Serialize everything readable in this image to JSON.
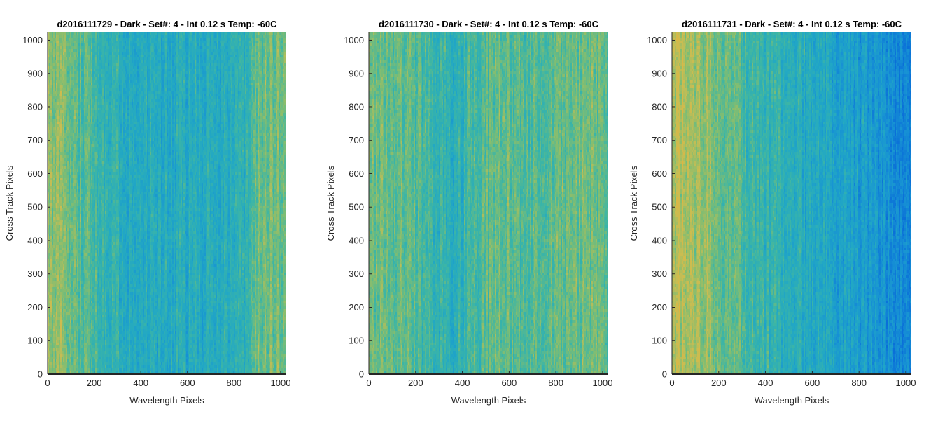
{
  "figure": {
    "background": "#ffffff",
    "colormap": [
      "#0a6fd8",
      "#1792d4",
      "#22a8c4",
      "#3cb5a6",
      "#80bd72",
      "#c9bd52",
      "#e3b43f"
    ]
  },
  "chart_data": [
    {
      "type": "heatmap",
      "title": "d2016111729 - Dark - Set#: 4 - Int 0.12 s Temp: -60C",
      "xlabel": "Wavelength Pixels",
      "ylabel": "Cross Track Pixels",
      "xlim": [
        0,
        1024
      ],
      "ylim": [
        0,
        1024
      ],
      "xticks": [
        0,
        200,
        400,
        600,
        800,
        1000
      ],
      "yticks": [
        0,
        100,
        200,
        300,
        400,
        500,
        600,
        700,
        800,
        900,
        1000
      ],
      "grid": false,
      "column_level_profile": {
        "wavelength_pixel": [
          0,
          100,
          200,
          300,
          400,
          500,
          600,
          700,
          800,
          850,
          900,
          1000,
          1024
        ],
        "normalized_level": [
          0.72,
          0.62,
          0.5,
          0.42,
          0.38,
          0.35,
          0.37,
          0.38,
          0.36,
          0.42,
          0.62,
          0.64,
          0.62
        ]
      }
    },
    {
      "type": "heatmap",
      "title": "d2016111730 - Dark - Set#: 4 - Int 0.12 s Temp: -60C",
      "xlabel": "Wavelength Pixels",
      "ylabel": "Cross Track Pixels",
      "xlim": [
        0,
        1024
      ],
      "ylim": [
        0,
        1024
      ],
      "xticks": [
        0,
        200,
        400,
        600,
        800,
        1000
      ],
      "yticks": [
        0,
        100,
        200,
        300,
        400,
        500,
        600,
        700,
        800,
        900,
        1000
      ],
      "grid": false,
      "column_level_profile": {
        "wavelength_pixel": [
          0,
          100,
          200,
          300,
          360,
          450,
          560,
          650,
          750,
          850,
          950,
          1024
        ],
        "normalized_level": [
          0.6,
          0.62,
          0.56,
          0.45,
          0.4,
          0.52,
          0.62,
          0.55,
          0.58,
          0.6,
          0.64,
          0.6
        ]
      }
    },
    {
      "type": "heatmap",
      "title": "d2016111731 - Dark - Set#: 4 - Int 0.12 s Temp: -60C",
      "xlabel": "Wavelength Pixels",
      "ylabel": "Cross Track Pixels",
      "xlim": [
        0,
        1024
      ],
      "ylim": [
        0,
        1024
      ],
      "xticks": [
        0,
        200,
        400,
        600,
        800,
        1000
      ],
      "yticks": [
        0,
        100,
        200,
        300,
        400,
        500,
        600,
        700,
        800,
        900,
        1000
      ],
      "grid": false,
      "column_level_profile": {
        "wavelength_pixel": [
          0,
          50,
          150,
          250,
          400,
          550,
          700,
          850,
          1000,
          1024
        ],
        "normalized_level": [
          0.74,
          0.8,
          0.72,
          0.58,
          0.45,
          0.38,
          0.3,
          0.22,
          0.12,
          0.1
        ]
      }
    }
  ]
}
